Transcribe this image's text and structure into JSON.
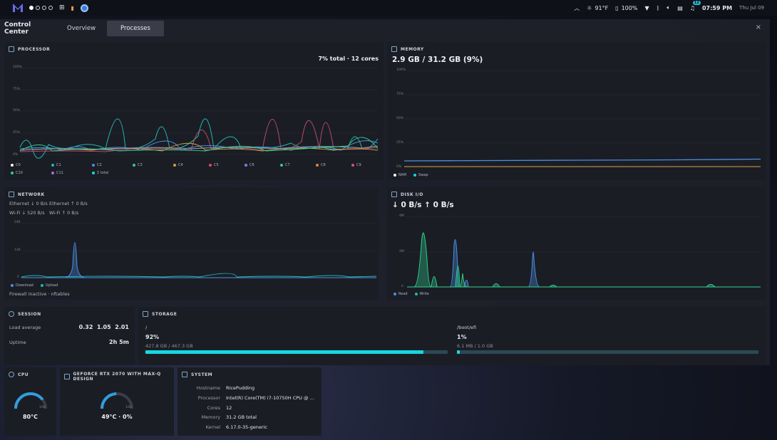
{
  "topbar": {
    "weather": "91°F",
    "battery": "100%",
    "notifications": "12",
    "time": "07:59 PM",
    "date": "Thu Jul 09"
  },
  "control_center": {
    "title": "Control Center",
    "tabs": [
      {
        "label": "Overview"
      },
      {
        "label": "Processes"
      }
    ],
    "active_tab": "Processes",
    "close_label": "×"
  },
  "processor": {
    "title": "PROCESSOR",
    "summary": "7% total · 12 cores",
    "axis": [
      "100%",
      "75%",
      "50%",
      "25%",
      "0%"
    ],
    "legend": [
      "C0",
      "C1",
      "C2",
      "C3",
      "C4",
      "C5",
      "C6",
      "C7",
      "C8",
      "C9",
      "C10",
      "C11",
      "Σ total"
    ]
  },
  "memory": {
    "title": "MEMORY",
    "summary": "2.9 GB / 31.2 GB (9%)",
    "axis": [
      "100%",
      "75%",
      "50%",
      "25%",
      "0%"
    ],
    "legend": [
      "RAM",
      "Swap"
    ]
  },
  "network": {
    "title": "NETWORK",
    "ethernet_down": "Ethernet ↓ 0 B/s",
    "ethernet_up": "Ethernet ↑ 0 B/s",
    "wifi_down": "Wi-Fi ↓ 520 B/s",
    "wifi_up": "Wi-Fi ↑ 0 B/s",
    "axis": [
      "24K",
      "12K",
      "0"
    ],
    "legend": [
      "Download",
      "Upload"
    ],
    "firewall": "Firewall inactive · nftables"
  },
  "disk": {
    "title": "DISK I/O",
    "summary": "↓ 0 B/s  ↑ 0 B/s",
    "axis": [
      "4M",
      "2M",
      "0"
    ],
    "legend": [
      "Read",
      "Write"
    ]
  },
  "session": {
    "title": "SESSION",
    "load_label": "Load average",
    "load_value": "0.32  1.05  2.01",
    "uptime_label": "Uptime",
    "uptime_value": "2h 5m"
  },
  "storage": {
    "title": "STORAGE",
    "volumes": [
      {
        "mount": "/",
        "percent": "92%",
        "detail": "427.8 GB / 467.3 GB",
        "fraction": 0.92
      },
      {
        "mount": "/boot/efi",
        "percent": "1%",
        "detail": "6.1 MB / 1.0 GB",
        "fraction": 0.01
      }
    ]
  },
  "cpu_card": {
    "title": "CPU",
    "value": "80°C",
    "min": "0",
    "max": "100",
    "fraction": 0.8
  },
  "gpu_card": {
    "title": "GEFORCE RTX 2070 WITH MAX-Q DESIGN",
    "value": "49°C · 0%",
    "min": "0",
    "max": "100",
    "fraction": 0.49
  },
  "system": {
    "title": "SYSTEM",
    "rows": [
      {
        "label": "Hostname",
        "value": "RicePudding"
      },
      {
        "label": "Processor",
        "value": "Intel(R) Core(TM) i7-10750H CPU @ ..."
      },
      {
        "label": "Cores",
        "value": "12"
      },
      {
        "label": "Memory",
        "value": "31.2 GB total"
      },
      {
        "label": "Kernel",
        "value": "6.17.0-35-generic"
      }
    ]
  },
  "colors": {
    "cyan": "#19d6e0",
    "blue": "#4a8fe0",
    "green": "#2ecf8a",
    "red": "#e04a5a",
    "orange": "#e0a040",
    "purple": "#a070e0"
  }
}
